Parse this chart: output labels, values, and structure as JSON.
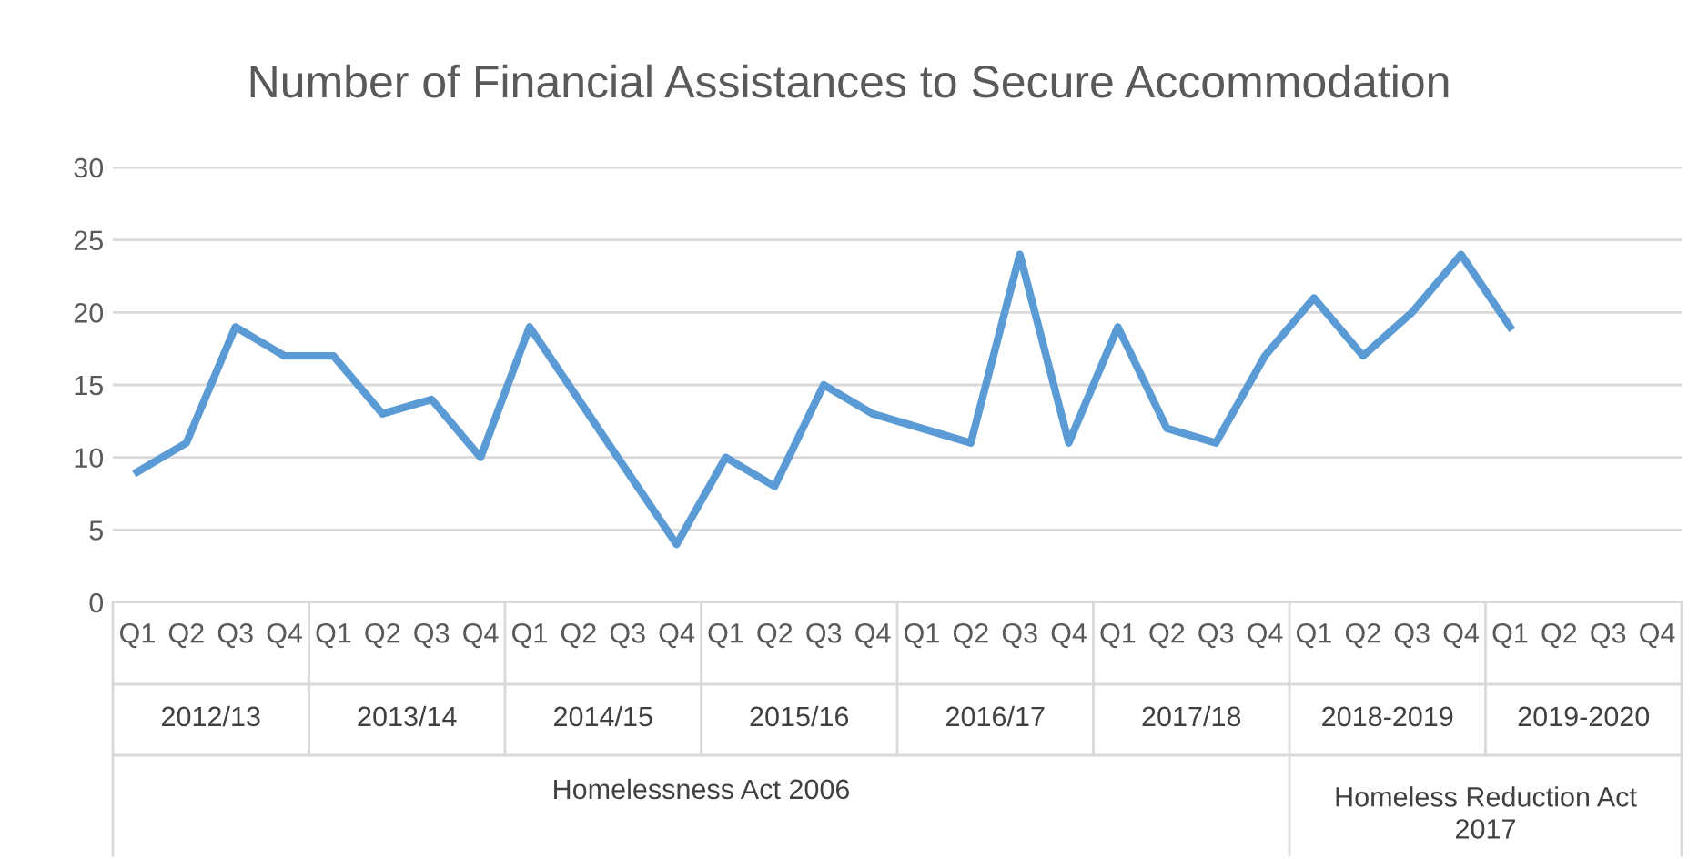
{
  "chart_data": {
    "type": "line",
    "title": "Number of Financial Assistances to Secure Accommodation",
    "categories": [
      "Q1",
      "Q2",
      "Q3",
      "Q4",
      "Q1",
      "Q2",
      "Q3",
      "Q4",
      "Q1",
      "Q2",
      "Q3",
      "Q4",
      "Q1",
      "Q2",
      "Q3",
      "Q4",
      "Q1",
      "Q2",
      "Q3",
      "Q4",
      "Q1",
      "Q2",
      "Q3",
      "Q4",
      "Q1",
      "Q2",
      "Q3",
      "Q4",
      "Q1",
      "Q2",
      "Q3",
      "Q4"
    ],
    "series": [
      {
        "color": "#5b9bd5",
        "values": [
          9,
          11,
          19,
          17,
          17,
          13,
          14,
          10,
          19,
          14,
          9,
          4,
          10,
          8,
          15,
          13,
          12,
          11,
          24,
          11,
          19,
          12,
          11,
          17,
          21,
          17,
          20,
          24,
          19,
          null,
          null,
          null
        ]
      }
    ],
    "annotations": [
      "2012/13",
      "2013/14",
      "2014/15",
      "2015/16",
      "2016/17",
      "2017/18",
      "2018-2019",
      "2019-2020",
      "Homelessness Act 2006",
      "Homeless Reduction Act\n2017"
    ],
    "ylim": [
      0,
      30
    ],
    "yticks": [
      0,
      5,
      10,
      15,
      20,
      25,
      30
    ],
    "grid": "y",
    "marker": "none",
    "line_style": "solid"
  }
}
